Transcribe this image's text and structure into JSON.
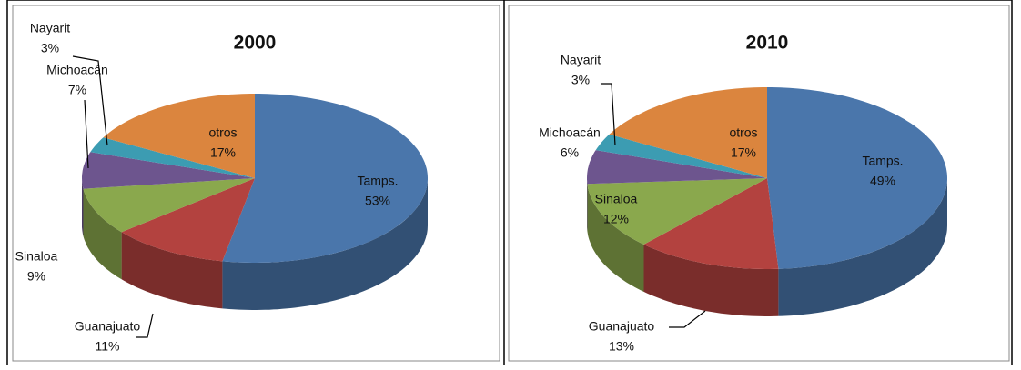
{
  "chart_data": [
    {
      "type": "pie",
      "title": "2000",
      "categories": [
        "Tamps.",
        "Guanajuato",
        "Sinaloa",
        "Michoacán",
        "Nayarit",
        "otros"
      ],
      "values": [
        53,
        11,
        9,
        7,
        3,
        17
      ],
      "value_labels": [
        "53%",
        "11%",
        "9%",
        "7%",
        "3%",
        "17%"
      ],
      "colors": [
        "#4a76ab",
        "#b3423f",
        "#8aa84d",
        "#6d558e",
        "#3c9cb2",
        "#db853e"
      ]
    },
    {
      "type": "pie",
      "title": "2010",
      "categories": [
        "Tamps.",
        "Guanajuato",
        "Sinaloa",
        "Michoacán",
        "Nayarit",
        "otros"
      ],
      "values": [
        49,
        13,
        12,
        6,
        3,
        17
      ],
      "value_labels": [
        "49%",
        "13%",
        "12%",
        "6%",
        "3%",
        "17%"
      ],
      "colors": [
        "#4a76ab",
        "#b3423f",
        "#8aa84d",
        "#6d558e",
        "#3c9cb2",
        "#db853e"
      ]
    }
  ]
}
